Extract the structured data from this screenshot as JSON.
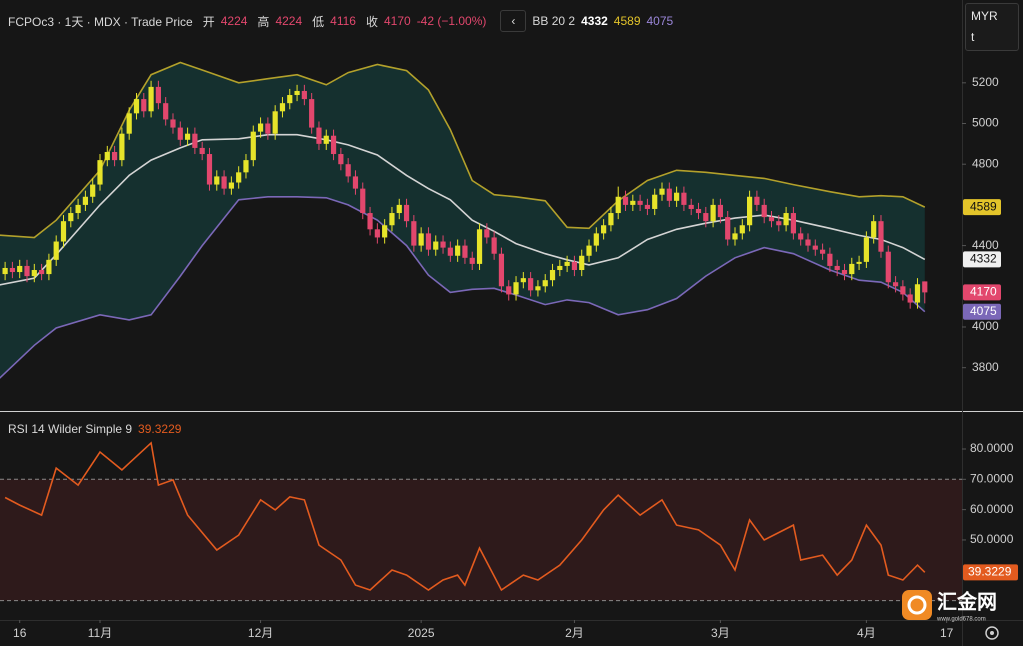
{
  "chart_data": {
    "type": "candlestick",
    "symbol": "FCPOc3 · 1天 · MDX · Trade Price",
    "ohlc_labels": [
      "开",
      "高",
      "低",
      "收"
    ],
    "change": "-42 (−1.00%)",
    "currency": "MYR",
    "unit": "t",
    "colors": {
      "up": "#e6e42a",
      "down": "#e2476d"
    },
    "open": [
      4260,
      4290,
      4270,
      4300,
      4250,
      4280,
      4260,
      4330,
      4420,
      4520,
      4560,
      4600,
      4640,
      4700,
      4820,
      4860,
      4820,
      4950,
      5050,
      5120,
      5060,
      5180,
      5100,
      5020,
      4980,
      4920,
      4950,
      4880,
      4850,
      4700,
      4740,
      4680,
      4710,
      4760,
      4820,
      4960,
      5000,
      4950,
      5060,
      5100,
      5140,
      5160,
      5120,
      4980,
      4900,
      4940,
      4850,
      4800,
      4740,
      4680,
      4560,
      4480,
      4440,
      4500,
      4560,
      4600,
      4520,
      4400,
      4460,
      4380,
      4420,
      4390,
      4350,
      4400,
      4340,
      4310,
      4480,
      4440,
      4360,
      4200,
      4160,
      4220,
      4240,
      4180,
      4200,
      4230,
      4280,
      4300,
      4320,
      4280,
      4350,
      4400,
      4460,
      4500,
      4560,
      4640,
      4600,
      4620,
      4600,
      4580,
      4650,
      4680,
      4620,
      4660,
      4600,
      4580,
      4560,
      4520,
      4600,
      4540,
      4430,
      4460,
      4500,
      4640,
      4600,
      4540,
      4520,
      4500,
      4560,
      4460,
      4430,
      4400,
      4380,
      4360,
      4300,
      4280,
      4260,
      4310,
      4320,
      4440,
      4520,
      4370,
      4220,
      4200,
      4160,
      4120,
      4224
    ],
    "high": [
      4320,
      4320,
      4330,
      4330,
      4310,
      4310,
      4360,
      4450,
      4550,
      4590,
      4630,
      4670,
      4730,
      4850,
      4890,
      4890,
      4980,
      5080,
      5150,
      5150,
      5210,
      5210,
      5130,
      5050,
      5010,
      4980,
      4980,
      4910,
      4880,
      4770,
      4770,
      4740,
      4790,
      4850,
      4990,
      5030,
      5030,
      5090,
      5130,
      5170,
      5190,
      5190,
      5150,
      5010,
      4970,
      4970,
      4880,
      4830,
      4770,
      4710,
      4590,
      4510,
      4530,
      4590,
      4630,
      4630,
      4550,
      4490,
      4490,
      4450,
      4450,
      4420,
      4430,
      4430,
      4370,
      4510,
      4510,
      4470,
      4390,
      4230,
      4250,
      4270,
      4270,
      4230,
      4260,
      4310,
      4330,
      4350,
      4350,
      4380,
      4430,
      4490,
      4530,
      4590,
      4690,
      4670,
      4650,
      4650,
      4630,
      4680,
      4710,
      4710,
      4690,
      4690,
      4630,
      4610,
      4590,
      4630,
      4630,
      4570,
      4490,
      4530,
      4670,
      4670,
      4630,
      4570,
      4550,
      4590,
      4590,
      4490,
      4460,
      4430,
      4410,
      4390,
      4330,
      4310,
      4340,
      4350,
      4470,
      4550,
      4550,
      4400,
      4250,
      4230,
      4190,
      4240,
      4224
    ],
    "low": [
      4230,
      4240,
      4240,
      4220,
      4220,
      4230,
      4230,
      4300,
      4390,
      4490,
      4530,
      4570,
      4610,
      4670,
      4790,
      4790,
      4790,
      4920,
      5020,
      5030,
      5030,
      5070,
      4990,
      4950,
      4890,
      4890,
      4850,
      4820,
      4670,
      4670,
      4650,
      4650,
      4680,
      4730,
      4790,
      4930,
      4920,
      4920,
      5030,
      5070,
      5110,
      5090,
      4950,
      4870,
      4870,
      4820,
      4770,
      4710,
      4650,
      4530,
      4450,
      4410,
      4410,
      4470,
      4530,
      4490,
      4370,
      4370,
      4350,
      4350,
      4360,
      4320,
      4320,
      4310,
      4280,
      4280,
      4410,
      4330,
      4170,
      4130,
      4130,
      4190,
      4150,
      4150,
      4170,
      4200,
      4250,
      4270,
      4250,
      4250,
      4320,
      4370,
      4430,
      4470,
      4530,
      4570,
      4570,
      4570,
      4550,
      4550,
      4620,
      4590,
      4590,
      4570,
      4550,
      4530,
      4490,
      4490,
      4510,
      4400,
      4400,
      4430,
      4470,
      4570,
      4510,
      4490,
      4470,
      4470,
      4430,
      4400,
      4370,
      4350,
      4330,
      4270,
      4250,
      4230,
      4230,
      4280,
      4290,
      4410,
      4340,
      4190,
      4170,
      4130,
      4090,
      4090,
      4116
    ],
    "close": [
      4290,
      4270,
      4300,
      4250,
      4280,
      4260,
      4330,
      4420,
      4520,
      4560,
      4600,
      4640,
      4700,
      4820,
      4860,
      4820,
      4950,
      5050,
      5120,
      5060,
      5180,
      5100,
      5020,
      4980,
      4920,
      4950,
      4880,
      4850,
      4700,
      4740,
      4680,
      4710,
      4760,
      4820,
      4960,
      5000,
      4950,
      5060,
      5100,
      5140,
      5160,
      5120,
      4980,
      4900,
      4940,
      4850,
      4800,
      4740,
      4680,
      4560,
      4480,
      4440,
      4500,
      4560,
      4600,
      4520,
      4400,
      4460,
      4380,
      4420,
      4390,
      4350,
      4400,
      4340,
      4310,
      4480,
      4440,
      4360,
      4200,
      4160,
      4220,
      4240,
      4180,
      4200,
      4230,
      4280,
      4300,
      4320,
      4280,
      4350,
      4400,
      4460,
      4500,
      4560,
      4640,
      4600,
      4620,
      4600,
      4580,
      4650,
      4680,
      4620,
      4660,
      4600,
      4580,
      4560,
      4520,
      4600,
      4540,
      4430,
      4460,
      4500,
      4640,
      4600,
      4540,
      4520,
      4500,
      4560,
      4460,
      4430,
      4400,
      4380,
      4360,
      4300,
      4280,
      4260,
      4310,
      4320,
      4440,
      4520,
      4370,
      4220,
      4200,
      4160,
      4120,
      4210,
      4170
    ],
    "xlim": [
      -0.7,
      131.1
    ],
    "xticks": [
      {
        "value": 2,
        "label": "16"
      },
      {
        "value": 13,
        "label": "11月"
      },
      {
        "value": 35,
        "label": "12月"
      },
      {
        "value": 57,
        "label": "2025"
      },
      {
        "value": 78,
        "label": "2月"
      },
      {
        "value": 98,
        "label": "3月"
      },
      {
        "value": 118,
        "label": "4月"
      },
      {
        "value": 129,
        "label": "17"
      }
    ],
    "ylim": [
      3592,
      5607
    ],
    "yticks": [
      3800,
      4000,
      4400,
      4800,
      5000,
      5200
    ],
    "bollinger": {
      "name": "BB 20 2",
      "fill": "#163a38",
      "x": [
        -1,
        4,
        7,
        13,
        17,
        20,
        24,
        27,
        32,
        36,
        40,
        44,
        47,
        51,
        55,
        58,
        61,
        64,
        67,
        70,
        74,
        77,
        80,
        84,
        88,
        92,
        96,
        100,
        104,
        108,
        113,
        117,
        120,
        123,
        126
      ],
      "series": [
        {
          "color": "#d4d4d4",
          "values": [
            4205,
            4240,
            4355,
            4600,
            4745,
            4820,
            4880,
            4920,
            4925,
            4945,
            4945,
            4920,
            4895,
            4845,
            4745,
            4680,
            4625,
            4525,
            4470,
            4410,
            4360,
            4330,
            4305,
            4340,
            4430,
            4480,
            4510,
            4535,
            4550,
            4525,
            4485,
            4450,
            4430,
            4390,
            4332
          ]
        },
        {
          "color": "#b3a12b",
          "values": [
            4452,
            4440,
            4525,
            4770,
            5065,
            5240,
            5300,
            5263,
            5200,
            5220,
            5240,
            5190,
            5250,
            5290,
            5260,
            5165,
            4970,
            4720,
            4650,
            4640,
            4620,
            4490,
            4485,
            4620,
            4720,
            4770,
            4760,
            4745,
            4730,
            4700,
            4665,
            4640,
            4645,
            4640,
            4589
          ]
        },
        {
          "color": "#7b68b8",
          "values": [
            3740,
            3910,
            3995,
            4060,
            4035,
            4060,
            4250,
            4400,
            4625,
            4640,
            4640,
            4635,
            4600,
            4525,
            4400,
            4255,
            4170,
            4185,
            4190,
            4157,
            4110,
            4133,
            4120,
            4060,
            4085,
            4140,
            4250,
            4340,
            4390,
            4360,
            4280,
            4230,
            4220,
            4170,
            4075
          ]
        }
      ]
    },
    "rsi": {
      "type": "line",
      "title": "RSI 14 Wilder Simple 9",
      "color": "#e35b1f",
      "band_fill": "#2e1a1b",
      "bands": [
        70,
        30
      ],
      "x": [
        0,
        2,
        5,
        7,
        10,
        13,
        16,
        20,
        21,
        23,
        25,
        29,
        32,
        35,
        37,
        39,
        41,
        43,
        46,
        48,
        50,
        53,
        55,
        58,
        60,
        62,
        63,
        65,
        68,
        71,
        73,
        76,
        79,
        82,
        84,
        87,
        90,
        92,
        95,
        98,
        100,
        102,
        104,
        108,
        109,
        112,
        114,
        116,
        118,
        120,
        121,
        123,
        125,
        126
      ],
      "values": [
        64,
        61.5,
        58.2,
        73.7,
        68.1,
        79,
        73.1,
        82,
        68.1,
        69.8,
        58.2,
        46.7,
        51.6,
        63.2,
        59.9,
        64.2,
        63.2,
        48.3,
        43.4,
        35.1,
        33.5,
        40.1,
        38.4,
        33.5,
        36.8,
        38.4,
        35.1,
        47.3,
        33.5,
        38.4,
        36.8,
        41.7,
        50,
        59.9,
        64.8,
        58.2,
        63.2,
        54.9,
        53.3,
        48.3,
        40.1,
        56.6,
        50,
        54.9,
        43.4,
        45,
        38.4,
        43.4,
        54.9,
        48.3,
        38.4,
        36.8,
        41.7,
        39.3229
      ],
      "ylim": [
        23.6,
        92.2
      ],
      "yticks": [
        {
          "value": 80,
          "label": "80.0000"
        },
        {
          "value": 70,
          "label": "70.0000"
        },
        {
          "value": 60,
          "label": "60.0000"
        },
        {
          "value": 50,
          "label": "50.0000"
        }
      ]
    }
  },
  "watermark": {
    "brand": "汇金网",
    "url": "www.gold678.com"
  }
}
